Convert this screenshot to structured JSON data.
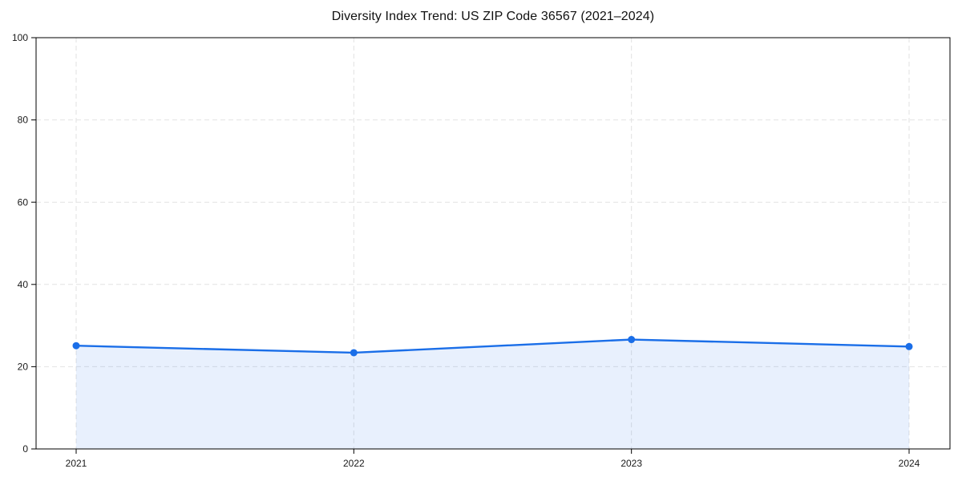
{
  "chart_data": {
    "type": "area",
    "title": "Diversity Index Trend: US ZIP Code 36567 (2021–2024)",
    "categories": [
      "2021",
      "2022",
      "2023",
      "2024"
    ],
    "series": [
      {
        "name": "Diversity Index",
        "values": [
          25.1,
          23.4,
          26.6,
          24.9
        ]
      }
    ],
    "xlabel": "",
    "ylabel": "",
    "ylim": [
      0,
      100
    ],
    "yticks": [
      0,
      20,
      40,
      60,
      80,
      100
    ],
    "grid": "dashed-both-axes",
    "legend": "none",
    "colors": {
      "line": "#1a6ee8",
      "marker": "#1a6ee8",
      "fill": "rgba(26,110,232,0.10)",
      "grid": "#e2e2e2",
      "spine": "#000000",
      "tick_label": "#1a1a1a",
      "title": "#111111",
      "background": "#ffffff"
    }
  }
}
